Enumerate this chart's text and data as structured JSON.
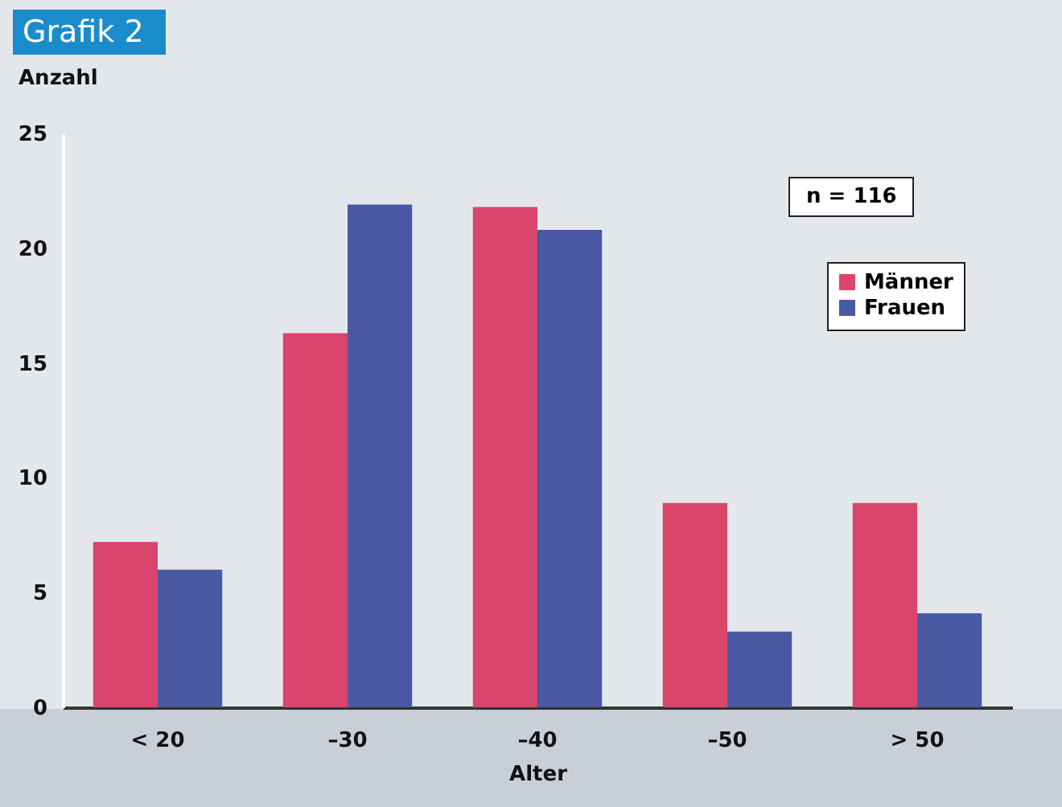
{
  "chart_data": {
    "type": "bar",
    "title": "Grafik 2",
    "xlabel": "Alter",
    "ylabel": "Anzahl",
    "annotations": [
      "n = 116"
    ],
    "categories": [
      "< 20",
      "–30",
      "–40",
      "–50",
      "> 50"
    ],
    "series": [
      {
        "name": "Männer",
        "color": "#d9456b",
        "values": [
          7.2,
          16.3,
          21.8,
          8.9,
          8.9
        ]
      },
      {
        "name": "Frauen",
        "color": "#4a59a3",
        "values": [
          6.0,
          21.9,
          20.8,
          3.3,
          4.1
        ]
      }
    ],
    "ylim": [
      0,
      25
    ],
    "yticks": [
      0,
      5,
      10,
      15,
      20,
      25
    ],
    "grid": false,
    "legend": "top right"
  }
}
